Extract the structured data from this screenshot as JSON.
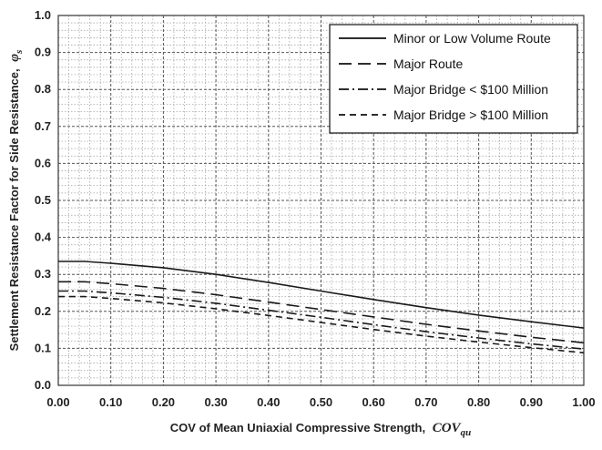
{
  "chart_data": {
    "type": "line",
    "xlabel": "COV of Mean Uniaxial Compressive Strength,",
    "xlabel_symbol": "COV",
    "xlabel_sub": "qu",
    "ylabel": "Settlement Resistance Factor for Side Resistance,",
    "ylabel_symbol": "φ",
    "ylabel_sub": "s",
    "xlim": [
      0.0,
      1.0
    ],
    "ylim": [
      0.0,
      1.0
    ],
    "xticks": [
      "0.00",
      "0.10",
      "0.20",
      "0.30",
      "0.40",
      "0.50",
      "0.60",
      "0.70",
      "0.80",
      "0.90",
      "1.00"
    ],
    "yticks": [
      "0.0",
      "0.1",
      "0.2",
      "0.3",
      "0.4",
      "0.5",
      "0.6",
      "0.7",
      "0.8",
      "0.9",
      "1.0"
    ],
    "grid": true,
    "legend_position": "top-right",
    "x": [
      0.0,
      0.05,
      0.1,
      0.2,
      0.3,
      0.4,
      0.5,
      0.6,
      0.7,
      0.8,
      0.9,
      1.0
    ],
    "series": [
      {
        "name": "Minor or Low Volume Route",
        "style": "solid",
        "values": [
          0.335,
          0.335,
          0.33,
          0.318,
          0.3,
          0.278,
          0.255,
          0.232,
          0.21,
          0.19,
          0.172,
          0.155
        ]
      },
      {
        "name": "Major Route",
        "style": "dash",
        "values": [
          0.28,
          0.28,
          0.275,
          0.262,
          0.245,
          0.225,
          0.205,
          0.185,
          0.165,
          0.147,
          0.13,
          0.115
        ]
      },
      {
        "name": "Major Bridge < $100 Million",
        "style": "dashdot",
        "values": [
          0.255,
          0.255,
          0.25,
          0.238,
          0.222,
          0.203,
          0.184,
          0.164,
          0.145,
          0.128,
          0.112,
          0.098
        ]
      },
      {
        "name": "Major Bridge > $100 Million",
        "style": "shortdash",
        "values": [
          0.24,
          0.24,
          0.235,
          0.223,
          0.207,
          0.189,
          0.17,
          0.151,
          0.133,
          0.117,
          0.102,
          0.088
        ]
      }
    ]
  }
}
